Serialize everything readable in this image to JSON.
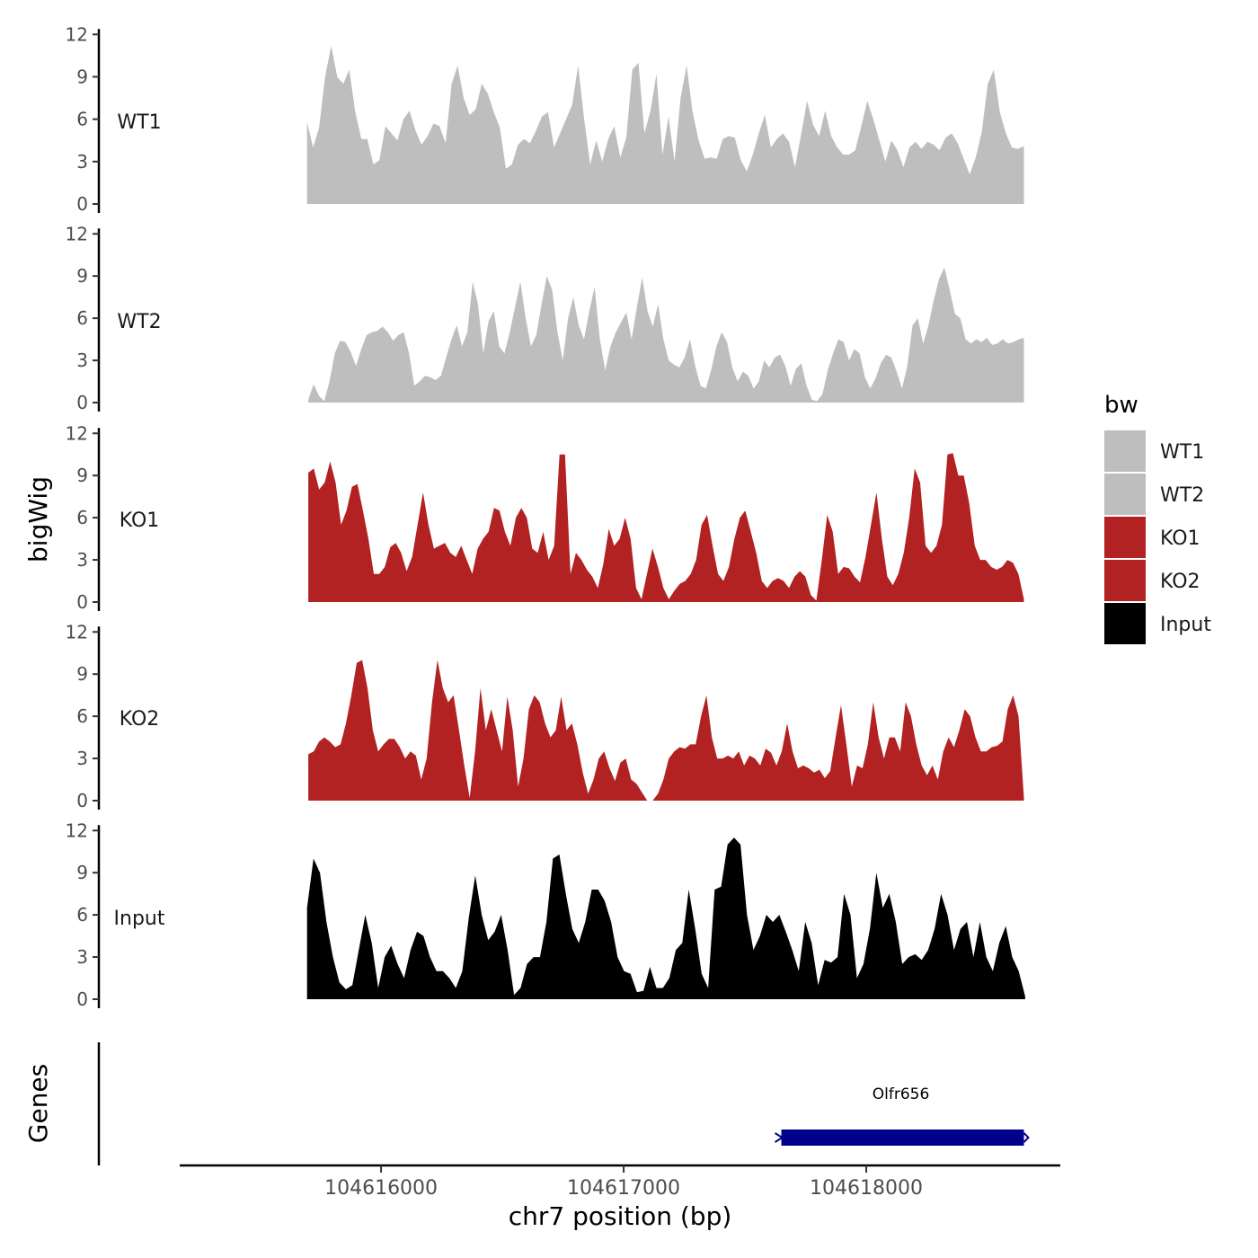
{
  "chart_data": {
    "type": "area",
    "y_axis_title": "bigWig",
    "genes_axis_title": "Genes",
    "x_axis_title": "chr7 position (bp)",
    "x_ticks": [
      104616000,
      104617000,
      104618000
    ],
    "xlim": [
      104615170,
      104618800
    ],
    "y_ticks": [
      0,
      3,
      6,
      9,
      12
    ],
    "ylim": [
      0,
      12.4
    ],
    "legend_title": "bw",
    "legend_position": "right",
    "series": [
      {
        "name": "WT1",
        "color": "#bebebe",
        "x_start": 104615695,
        "x_end": 104618650,
        "values": [
          5.8,
          4.0,
          5.4,
          9.0,
          11.2,
          9.0,
          8.5,
          9.5,
          6.5,
          4.6,
          4.6,
          2.8,
          3.1,
          5.5,
          5.0,
          4.5,
          6.0,
          6.6,
          5.2,
          4.2,
          4.8,
          5.7,
          5.5,
          4.3,
          8.5,
          9.8,
          7.5,
          6.3,
          6.7,
          8.5,
          7.8,
          6.5,
          5.4,
          2.5,
          2.8,
          4.2,
          4.6,
          4.3,
          5.2,
          6.2,
          6.5,
          4.0,
          5.0,
          6.0,
          7.0,
          9.8,
          6.0,
          2.8,
          4.5,
          3.0,
          4.6,
          5.5,
          3.3,
          4.7,
          9.5,
          10.0,
          5.0,
          6.6,
          9.2,
          3.5,
          6.2,
          3.0,
          7.5,
          9.8,
          6.5,
          4.5,
          3.2,
          3.3,
          3.2,
          4.6,
          4.8,
          4.7,
          3.1,
          2.3,
          3.5,
          5.0,
          6.3,
          4.0,
          4.6,
          5.0,
          4.4,
          2.6,
          4.9,
          7.3,
          5.6,
          4.8,
          6.6,
          4.8,
          4.0,
          3.5,
          3.5,
          3.8,
          5.5,
          7.3,
          6.0,
          4.5,
          3.0,
          4.5,
          3.8,
          2.6,
          4.0,
          4.4,
          3.9,
          4.4,
          4.2,
          3.8,
          4.7,
          5.0,
          4.3,
          3.2,
          2.1,
          3.3,
          5.1,
          8.5,
          9.5,
          6.5,
          5.0,
          4.0,
          3.9,
          4.1
        ]
      },
      {
        "name": "WT2",
        "color": "#bebebe",
        "x_start": 104615700,
        "x_end": 104618650,
        "values": [
          0.2,
          1.3,
          0.5,
          0.1,
          1.5,
          3.5,
          4.4,
          4.3,
          3.6,
          2.6,
          3.8,
          4.8,
          5.0,
          5.1,
          5.4,
          5.0,
          4.4,
          4.8,
          5.0,
          3.5,
          1.2,
          1.5,
          1.9,
          1.8,
          1.6,
          1.9,
          3.2,
          4.5,
          5.5,
          4.0,
          5.0,
          8.6,
          7.0,
          3.5,
          5.8,
          6.5,
          4.0,
          3.5,
          5.0,
          6.8,
          8.6,
          6.0,
          4.0,
          4.8,
          7.0,
          9.0,
          8.0,
          5.0,
          3.0,
          6.0,
          7.5,
          5.5,
          4.5,
          6.5,
          8.2,
          4.5,
          2.3,
          4.0,
          5.0,
          5.7,
          6.4,
          4.5,
          6.8,
          8.9,
          6.5,
          5.4,
          7.0,
          4.5,
          3.0,
          2.7,
          2.5,
          3.2,
          4.5,
          2.6,
          1.2,
          1.0,
          2.3,
          4.0,
          5.0,
          4.3,
          2.5,
          1.5,
          2.2,
          1.9,
          1.0,
          1.5,
          3.0,
          2.5,
          3.2,
          3.4,
          2.6,
          1.2,
          2.4,
          2.8,
          1.2,
          0.2,
          0.1,
          0.6,
          2.3,
          3.5,
          4.5,
          4.3,
          3.0,
          3.8,
          3.5,
          1.8,
          1.0,
          1.7,
          2.8,
          3.4,
          3.2,
          2.2,
          1.0,
          2.6,
          5.5,
          6.0,
          4.2,
          5.5,
          7.3,
          8.8,
          9.6,
          8.0,
          6.3,
          6.0,
          4.5,
          4.2,
          4.5,
          4.3,
          4.6,
          4.1,
          4.2,
          4.5,
          4.2,
          4.3,
          4.5,
          4.6
        ]
      },
      {
        "name": "KO1",
        "color": "#b22222",
        "x_start": 104615700,
        "x_end": 104618650,
        "values": [
          9.2,
          9.5,
          8.0,
          8.5,
          10.0,
          8.5,
          5.5,
          6.5,
          8.2,
          8.4,
          6.5,
          4.5,
          2.0,
          2.0,
          2.5,
          3.9,
          4.2,
          3.5,
          2.2,
          3.2,
          5.5,
          7.8,
          5.5,
          3.8,
          4.0,
          4.2,
          3.5,
          3.2,
          4.0,
          3.0,
          2.0,
          3.8,
          4.5,
          5.0,
          6.7,
          6.5,
          5.0,
          4.0,
          6.0,
          6.7,
          6.0,
          3.8,
          3.5,
          5.0,
          3.0,
          4.0,
          10.5,
          10.5,
          2.0,
          3.5,
          3.0,
          2.3,
          1.8,
          1.0,
          2.7,
          5.2,
          4.0,
          4.5,
          6.0,
          4.5,
          1.0,
          0.2,
          2.0,
          3.8,
          2.5,
          1.0,
          0.2,
          0.8,
          1.3,
          1.5,
          2.0,
          3.0,
          5.5,
          6.2,
          4.0,
          2.0,
          1.5,
          2.5,
          4.5,
          6.0,
          6.5,
          5.0,
          3.5,
          1.5,
          1.0,
          1.5,
          1.7,
          1.5,
          1.0,
          1.8,
          2.2,
          1.8,
          0.5,
          0.1,
          3.0,
          6.2,
          5.0,
          2.0,
          2.5,
          2.4,
          1.8,
          1.4,
          3.2,
          5.5,
          7.8,
          4.5,
          1.8,
          1.2,
          2.0,
          3.5,
          6.0,
          9.5,
          8.5,
          4.0,
          3.5,
          4.0,
          5.5,
          10.5,
          10.6,
          9.0,
          9.0,
          7.0,
          4.0,
          3.0,
          3.0,
          2.5,
          2.3,
          2.5,
          3.0,
          2.8,
          2.0,
          0.2
        ]
      },
      {
        "name": "KO2",
        "color": "#b22222",
        "x_start": 104615700,
        "x_end": 104618650,
        "values": [
          3.3,
          3.5,
          4.2,
          4.5,
          4.2,
          3.8,
          4.0,
          5.5,
          7.5,
          9.8,
          10.0,
          8.0,
          5.0,
          3.5,
          4.0,
          4.4,
          4.4,
          3.8,
          3.0,
          3.5,
          3.2,
          1.5,
          3.0,
          7.0,
          10.0,
          8.0,
          7.0,
          7.5,
          5.0,
          2.5,
          0.2,
          3.5,
          8.0,
          5.0,
          6.5,
          5.0,
          3.5,
          7.4,
          5.0,
          1.0,
          3.0,
          6.5,
          7.5,
          7.0,
          5.5,
          4.5,
          5.0,
          7.4,
          5.0,
          5.5,
          4.0,
          2.0,
          0.5,
          1.5,
          3.0,
          3.5,
          2.3,
          1.4,
          2.7,
          3.0,
          1.5,
          1.2,
          0.6,
          0.0,
          0.0,
          0.5,
          1.5,
          3.0,
          3.5,
          3.8,
          3.7,
          4.0,
          4.0,
          6.0,
          7.5,
          4.5,
          3.0,
          3.0,
          3.2,
          3.0,
          3.5,
          2.5,
          3.2,
          3.0,
          2.5,
          3.7,
          3.4,
          2.5,
          3.5,
          5.5,
          3.5,
          2.3,
          2.5,
          2.3,
          2.0,
          2.2,
          1.6,
          2.1,
          4.5,
          6.8,
          4.0,
          1.0,
          2.5,
          2.3,
          4.0,
          7.0,
          4.5,
          3.0,
          4.5,
          4.5,
          3.5,
          7.0,
          6.0,
          4.0,
          2.5,
          1.8,
          2.5,
          1.5,
          3.5,
          4.5,
          3.8,
          5.0,
          6.5,
          6.0,
          4.5,
          3.5,
          3.5,
          3.8,
          3.9,
          4.2,
          6.5,
          7.5,
          6.0,
          0.2
        ]
      },
      {
        "name": "Input",
        "color": "#000000",
        "x_start": 104615695,
        "x_end": 104618655,
        "values": [
          6.5,
          10.0,
          9.0,
          5.5,
          3.0,
          1.2,
          0.7,
          1.0,
          3.5,
          6.0,
          4.0,
          0.8,
          3.0,
          3.8,
          2.5,
          1.5,
          3.5,
          4.8,
          4.5,
          3.0,
          2.0,
          2.0,
          1.5,
          0.8,
          2.0,
          5.8,
          8.8,
          6.0,
          4.2,
          4.8,
          6.0,
          3.5,
          0.3,
          0.8,
          2.5,
          3.0,
          3.0,
          5.5,
          10.0,
          10.3,
          7.5,
          5.0,
          4.0,
          5.5,
          7.8,
          7.8,
          7.0,
          5.5,
          3.0,
          2.0,
          1.8,
          0.5,
          0.6,
          2.3,
          0.8,
          0.8,
          1.5,
          3.5,
          4.0,
          7.8,
          5.0,
          1.8,
          0.8,
          7.8,
          8.0,
          11.0,
          11.5,
          11.0,
          6.0,
          3.5,
          4.5,
          6.0,
          5.5,
          6.0,
          4.8,
          3.5,
          2.0,
          5.5,
          4.0,
          1.0,
          2.8,
          2.6,
          3.0,
          7.5,
          6.0,
          1.5,
          2.5,
          5.0,
          9.0,
          6.5,
          7.5,
          5.5,
          2.5,
          3.0,
          3.2,
          2.8,
          3.5,
          5.0,
          7.5,
          6.0,
          3.5,
          5.0,
          5.5,
          3.0,
          5.5,
          3.0,
          2.0,
          4.0,
          5.2,
          3.0,
          2.0,
          0.2
        ]
      }
    ],
    "gene_track": {
      "gene_name": "Olfr656",
      "start": 104617650,
      "end": 104618650,
      "color": "#00008b"
    }
  }
}
